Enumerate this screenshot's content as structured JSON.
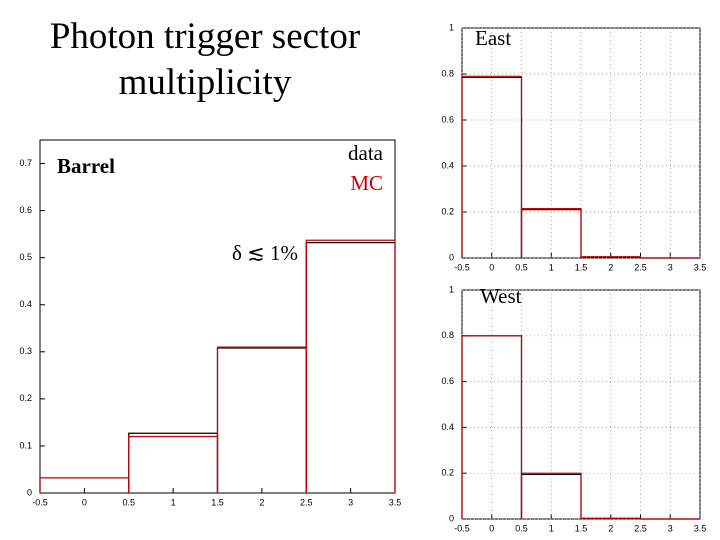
{
  "title": "Photon trigger sector multiplicity",
  "chart_data": [
    {
      "type": "histogram",
      "title": "Barrel",
      "annotation": "δ ≲ 1%",
      "bins": [
        -0.5,
        0.5,
        1.5,
        2.5,
        3.5
      ],
      "series": [
        {
          "name": "data",
          "color": "#000000",
          "values": [
            0.032,
            0.127,
            0.308,
            0.532
          ]
        },
        {
          "name": "MC",
          "color": "#cc0000",
          "values": [
            0.032,
            0.12,
            0.31,
            0.537
          ]
        }
      ],
      "legend": "upper right",
      "xlim": [
        -0.5,
        3.5
      ],
      "xticks": [
        -0.5,
        0,
        0.5,
        1,
        1.5,
        2,
        2.5,
        3,
        3.5
      ],
      "ylim": [
        0,
        0.75
      ],
      "yticks": [
        0,
        0.1,
        0.2,
        0.3,
        0.4,
        0.5,
        0.6,
        0.7
      ],
      "grid": false
    },
    {
      "type": "histogram",
      "title": "East",
      "bins": [
        -0.5,
        0.5,
        1.5,
        2.5,
        3.5
      ],
      "series": [
        {
          "color": "#000000",
          "values": [
            0.785,
            0.21,
            0.005,
            0
          ]
        },
        {
          "color": "#cc0000",
          "values": [
            0.79,
            0.215,
            0.005,
            0
          ]
        }
      ],
      "xlim": [
        -0.5,
        3.5
      ],
      "xticks": [
        -0.5,
        0,
        0.5,
        1,
        1.5,
        2,
        2.5,
        3,
        3.5
      ],
      "ylim": [
        0,
        1
      ],
      "yticks": [
        0,
        0.2,
        0.4,
        0.6,
        0.8,
        1
      ],
      "grid": true
    },
    {
      "type": "histogram",
      "title": "West",
      "bins": [
        -0.5,
        0.5,
        1.5,
        2.5,
        3.5
      ],
      "series": [
        {
          "color": "#000000",
          "values": [
            0.8,
            0.195,
            0.003,
            0
          ]
        },
        {
          "color": "#cc0000",
          "values": [
            0.8,
            0.2,
            0.003,
            0
          ]
        }
      ],
      "xlim": [
        -0.5,
        3.5
      ],
      "xticks": [
        -0.5,
        0,
        0.5,
        1,
        1.5,
        2,
        2.5,
        3,
        3.5
      ],
      "ylim": [
        0,
        1
      ],
      "yticks": [
        0,
        0.2,
        0.4,
        0.6,
        0.8,
        1
      ],
      "grid": true
    }
  ]
}
